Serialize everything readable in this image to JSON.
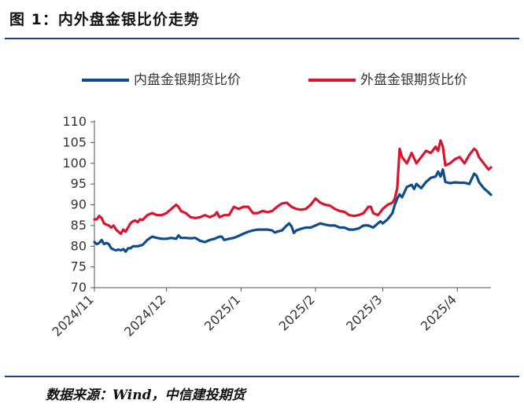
{
  "title": "图  1：内外盘金银比价走势",
  "source": "数据来源：Wind，中信建投期货",
  "chart_data": {
    "type": "line",
    "ylim": [
      70,
      110
    ],
    "yticks": [
      70,
      75,
      80,
      85,
      90,
      95,
      100,
      105,
      110
    ],
    "xlim": [
      0,
      165
    ],
    "xticks": [
      {
        "label": "2024/11",
        "x": 0
      },
      {
        "label": "2024/12",
        "x": 30
      },
      {
        "label": "2025/1",
        "x": 61
      },
      {
        "label": "2025/2",
        "x": 92
      },
      {
        "label": "2025/3",
        "x": 120
      },
      {
        "label": "2025/4",
        "x": 151
      }
    ],
    "legend_position": "top",
    "grid": false,
    "series": [
      {
        "name": "内盘金银期货比价",
        "color": "#0f4c8c",
        "points": [
          [
            0,
            81
          ],
          [
            1,
            80.5
          ],
          [
            2,
            80.8
          ],
          [
            3,
            81.5
          ],
          [
            4,
            80.5
          ],
          [
            5,
            80.8
          ],
          [
            6,
            80.5
          ],
          [
            7,
            79.5
          ],
          [
            8,
            79.2
          ],
          [
            9,
            79.0
          ],
          [
            10,
            79.2
          ],
          [
            11,
            79.0
          ],
          [
            12,
            79.3
          ],
          [
            13,
            78.7
          ],
          [
            14,
            79.5
          ],
          [
            15,
            79.5
          ],
          [
            16,
            80.0
          ],
          [
            17,
            80.0
          ],
          [
            18,
            80.0
          ],
          [
            20,
            80.3
          ],
          [
            22,
            81.5
          ],
          [
            24,
            82.3
          ],
          [
            26,
            82.0
          ],
          [
            28,
            81.8
          ],
          [
            30,
            81.8
          ],
          [
            32,
            82.0
          ],
          [
            34,
            81.8
          ],
          [
            35,
            82.6
          ],
          [
            36,
            82.0
          ],
          [
            38,
            82.0
          ],
          [
            40,
            81.9
          ],
          [
            42,
            82.0
          ],
          [
            44,
            81.3
          ],
          [
            46,
            81.0
          ],
          [
            48,
            81.5
          ],
          [
            50,
            81.8
          ],
          [
            52,
            82.3
          ],
          [
            53,
            82.3
          ],
          [
            54,
            81.5
          ],
          [
            56,
            81.8
          ],
          [
            58,
            82.0
          ],
          [
            60,
            82.5
          ],
          [
            62,
            83.0
          ],
          [
            64,
            83.5
          ],
          [
            66,
            83.8
          ],
          [
            68,
            84.0
          ],
          [
            70,
            84.0
          ],
          [
            72,
            84.0
          ],
          [
            74,
            83.8
          ],
          [
            75,
            83.3
          ],
          [
            76,
            83.5
          ],
          [
            78,
            83.8
          ],
          [
            80,
            85.0
          ],
          [
            81,
            85.5
          ],
          [
            82,
            84.8
          ],
          [
            83,
            83.2
          ],
          [
            84,
            83.8
          ],
          [
            86,
            84.2
          ],
          [
            88,
            84.5
          ],
          [
            90,
            84.5
          ],
          [
            92,
            85.0
          ],
          [
            94,
            85.5
          ],
          [
            96,
            85.2
          ],
          [
            98,
            85.0
          ],
          [
            100,
            85.0
          ],
          [
            102,
            84.5
          ],
          [
            104,
            84.5
          ],
          [
            106,
            84.0
          ],
          [
            108,
            84.0
          ],
          [
            110,
            84.3
          ],
          [
            112,
            85.0
          ],
          [
            114,
            85.0
          ],
          [
            116,
            84.5
          ],
          [
            118,
            85.5
          ],
          [
            119,
            86.0
          ],
          [
            120,
            85.5
          ],
          [
            122,
            86.5
          ],
          [
            124,
            88.0
          ],
          [
            125,
            90.0
          ],
          [
            126,
            91.5
          ],
          [
            127,
            92.5
          ],
          [
            128,
            91.8
          ],
          [
            130,
            94.3
          ],
          [
            132,
            94.8
          ],
          [
            133,
            93.8
          ],
          [
            134,
            95.0
          ],
          [
            136,
            94.0
          ],
          [
            138,
            95.5
          ],
          [
            140,
            96.5
          ],
          [
            142,
            96.8
          ],
          [
            143,
            98.0
          ],
          [
            144,
            96.8
          ],
          [
            145,
            98.5
          ],
          [
            146,
            95.5
          ],
          [
            148,
            95.2
          ],
          [
            150,
            95.4
          ],
          [
            152,
            95.3
          ],
          [
            154,
            95.3
          ],
          [
            156,
            95.0
          ],
          [
            158,
            97.5
          ],
          [
            159,
            97.0
          ],
          [
            160,
            95.5
          ],
          [
            162,
            94.0
          ],
          [
            164,
            93.0
          ],
          [
            165,
            92.4
          ]
        ]
      },
      {
        "name": "外盘金银期货比价",
        "color": "#d7152f",
        "points": [
          [
            0,
            86.5
          ],
          [
            1,
            86.5
          ],
          [
            2,
            87.3
          ],
          [
            3,
            86.8
          ],
          [
            4,
            85.5
          ],
          [
            5,
            85.2
          ],
          [
            6,
            85.0
          ],
          [
            7,
            84.5
          ],
          [
            8,
            85.0
          ],
          [
            9,
            84.0
          ],
          [
            10,
            83.5
          ],
          [
            11,
            83.0
          ],
          [
            12,
            84.0
          ],
          [
            13,
            83.5
          ],
          [
            14,
            84.5
          ],
          [
            15,
            85.5
          ],
          [
            16,
            86.0
          ],
          [
            17,
            86.2
          ],
          [
            18,
            85.8
          ],
          [
            19,
            86.5
          ],
          [
            20,
            86.3
          ],
          [
            22,
            87.5
          ],
          [
            24,
            88.0
          ],
          [
            26,
            87.5
          ],
          [
            28,
            87.5
          ],
          [
            30,
            88.0
          ],
          [
            32,
            89.0
          ],
          [
            34,
            90.0
          ],
          [
            35,
            89.5
          ],
          [
            36,
            88.5
          ],
          [
            38,
            88.0
          ],
          [
            40,
            87.0
          ],
          [
            42,
            86.8
          ],
          [
            44,
            87.0
          ],
          [
            46,
            87.5
          ],
          [
            48,
            87.0
          ],
          [
            50,
            87.5
          ],
          [
            51,
            88.2
          ],
          [
            52,
            87.0
          ],
          [
            54,
            87.5
          ],
          [
            56,
            87.5
          ],
          [
            58,
            89.5
          ],
          [
            60,
            89.0
          ],
          [
            62,
            89.5
          ],
          [
            64,
            89.5
          ],
          [
            66,
            88.0
          ],
          [
            68,
            88.0
          ],
          [
            70,
            88.5
          ],
          [
            72,
            88.2
          ],
          [
            74,
            88.5
          ],
          [
            76,
            89.5
          ],
          [
            78,
            90.3
          ],
          [
            80,
            90.5
          ],
          [
            82,
            89.5
          ],
          [
            84,
            89.0
          ],
          [
            86,
            88.8
          ],
          [
            88,
            89.0
          ],
          [
            90,
            90.0
          ],
          [
            92,
            91.5
          ],
          [
            93,
            91.0
          ],
          [
            94,
            90.5
          ],
          [
            96,
            90.0
          ],
          [
            98,
            89.8
          ],
          [
            100,
            89.0
          ],
          [
            102,
            88.5
          ],
          [
            104,
            88.3
          ],
          [
            106,
            87.5
          ],
          [
            108,
            87.3
          ],
          [
            110,
            87.5
          ],
          [
            112,
            88.0
          ],
          [
            114,
            89.5
          ],
          [
            115,
            89.5
          ],
          [
            116,
            88.0
          ],
          [
            118,
            87.5
          ],
          [
            120,
            89.0
          ],
          [
            122,
            90.0
          ],
          [
            124,
            90.5
          ],
          [
            125,
            91.5
          ],
          [
            126,
            94.0
          ],
          [
            127,
            103.5
          ],
          [
            128,
            101.5
          ],
          [
            130,
            100.0
          ],
          [
            132,
            102.5
          ],
          [
            134,
            100.0
          ],
          [
            136,
            101.5
          ],
          [
            138,
            103.0
          ],
          [
            140,
            102.5
          ],
          [
            142,
            104.0
          ],
          [
            143,
            103.0
          ],
          [
            144,
            105.5
          ],
          [
            145,
            104.0
          ],
          [
            146,
            99.5
          ],
          [
            148,
            100.0
          ],
          [
            150,
            101.0
          ],
          [
            152,
            101.5
          ],
          [
            154,
            100.0
          ],
          [
            156,
            102.0
          ],
          [
            158,
            103.5
          ],
          [
            159,
            103.0
          ],
          [
            160,
            101.5
          ],
          [
            162,
            100.0
          ],
          [
            164,
            98.5
          ],
          [
            165,
            99.0
          ]
        ]
      }
    ]
  }
}
